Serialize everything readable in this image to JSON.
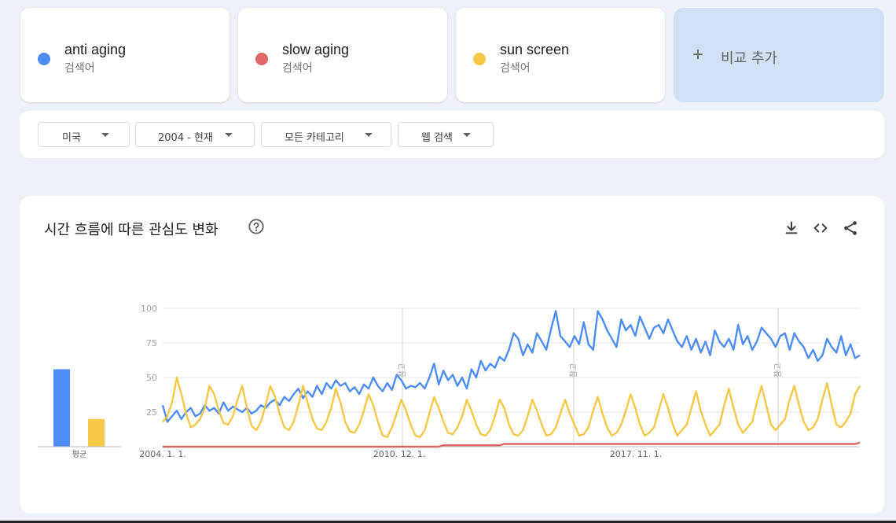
{
  "terms": [
    {
      "name": "anti aging",
      "type": "검색어",
      "color": "#4e8df5"
    },
    {
      "name": "slow aging",
      "type": "검색어",
      "color": "#e06666"
    },
    {
      "name": "sun screen",
      "type": "검색어",
      "color": "#f5c848"
    }
  ],
  "add_compare": {
    "label": "비교 추가"
  },
  "filters": {
    "region": "미국",
    "period": "2004 - 현재",
    "category": "모든 카테고리",
    "search_type": "웹 검색"
  },
  "chart_panel": {
    "title": "시간 흐름에 따른 관심도 변화",
    "icons": [
      "help-icon",
      "download-icon",
      "embed-icon",
      "share-icon"
    ]
  },
  "chart_data": {
    "type": "line",
    "ylim": [
      0,
      100
    ],
    "yticks": [
      "100",
      "75",
      "50",
      "25"
    ],
    "xticks": [
      "2004. 1. 1.",
      "2010. 12. 1.",
      "2017. 11. 1."
    ],
    "annotation_label": "참고",
    "averages": {
      "label": "평균",
      "values": [
        {
          "name": "anti aging",
          "value": 56,
          "color": "#4e8df5"
        },
        {
          "name": "sun screen",
          "value": 20,
          "color": "#f5c848"
        }
      ]
    },
    "series": [
      {
        "name": "anti aging",
        "color": "#4e8df5",
        "values": [
          30,
          18,
          22,
          26,
          20,
          25,
          28,
          22,
          24,
          30,
          26,
          28,
          24,
          32,
          26,
          29,
          27,
          25,
          28,
          24,
          26,
          30,
          28,
          32,
          34,
          30,
          36,
          33,
          38,
          42,
          35,
          40,
          36,
          44,
          38,
          46,
          42,
          48,
          44,
          46,
          40,
          43,
          38,
          45,
          42,
          50,
          44,
          40,
          46,
          41,
          52,
          48,
          42,
          44,
          43,
          46,
          42,
          50,
          60,
          45,
          55,
          48,
          52,
          44,
          50,
          42,
          56,
          50,
          62,
          55,
          60,
          57,
          65,
          62,
          70,
          82,
          78,
          66,
          74,
          68,
          82,
          76,
          70,
          85,
          98,
          80,
          76,
          72,
          80,
          74,
          90,
          74,
          70,
          98,
          92,
          84,
          78,
          72,
          92,
          84,
          88,
          80,
          94,
          86,
          78,
          86,
          88,
          82,
          92,
          84,
          76,
          72,
          80,
          70,
          78,
          68,
          76,
          66,
          84,
          76,
          72,
          78,
          70,
          88,
          74,
          80,
          70,
          76,
          86,
          82,
          78,
          72,
          80,
          82,
          70,
          82,
          76,
          72,
          64,
          70,
          62,
          66,
          78,
          72,
          68,
          80,
          66,
          74,
          64,
          66
        ]
      },
      {
        "name": "slow aging",
        "color": "#e06666",
        "values": [
          0,
          0,
          0,
          0,
          0,
          0,
          0,
          0,
          0,
          0,
          0,
          0,
          0,
          0,
          0,
          0,
          0,
          0,
          0,
          0,
          0,
          0,
          0,
          0,
          0,
          0,
          0,
          0,
          0,
          0,
          0,
          0,
          0,
          0,
          0,
          0,
          0,
          0,
          0,
          0,
          0,
          0,
          0,
          0,
          0,
          0,
          0,
          0,
          0,
          0,
          0,
          0,
          0,
          0,
          0,
          0,
          0,
          0,
          0,
          0,
          1,
          1,
          1,
          1,
          1,
          1,
          1,
          1,
          1,
          1,
          1,
          1,
          1,
          2,
          2,
          2,
          2,
          2,
          2,
          2,
          2,
          2,
          2,
          2,
          2,
          2,
          2,
          2,
          2,
          2,
          2,
          2,
          2,
          2,
          2,
          2,
          2,
          2,
          2,
          2,
          2,
          2,
          2,
          2,
          2,
          2,
          2,
          2,
          2,
          2,
          2,
          2,
          2,
          2,
          2,
          2,
          2,
          2,
          2,
          2,
          2,
          2,
          2,
          2,
          2,
          2,
          2,
          2,
          2,
          2,
          2,
          2,
          2,
          2,
          2,
          2,
          2,
          2,
          2,
          2,
          2,
          2,
          2,
          2,
          2,
          2,
          2,
          2,
          2,
          3
        ]
      },
      {
        "name": "sun screen",
        "color": "#f5c848",
        "values": [
          18,
          22,
          32,
          50,
          38,
          24,
          14,
          16,
          20,
          28,
          44,
          38,
          26,
          17,
          16,
          22,
          34,
          44,
          28,
          15,
          12,
          18,
          30,
          44,
          36,
          24,
          14,
          12,
          18,
          30,
          44,
          32,
          20,
          13,
          12,
          18,
          28,
          42,
          32,
          18,
          11,
          10,
          16,
          26,
          38,
          30,
          18,
          8,
          7,
          14,
          24,
          34,
          26,
          16,
          8,
          7,
          12,
          24,
          36,
          28,
          18,
          10,
          9,
          14,
          22,
          34,
          26,
          16,
          9,
          8,
          12,
          22,
          34,
          28,
          16,
          9,
          8,
          12,
          22,
          34,
          26,
          16,
          8,
          9,
          14,
          24,
          34,
          24,
          16,
          8,
          9,
          14,
          26,
          36,
          24,
          14,
          8,
          10,
          16,
          26,
          38,
          28,
          16,
          8,
          10,
          14,
          26,
          38,
          28,
          16,
          8,
          12,
          16,
          28,
          40,
          26,
          16,
          8,
          12,
          16,
          30,
          42,
          28,
          16,
          10,
          14,
          18,
          32,
          44,
          30,
          16,
          12,
          16,
          20,
          34,
          44,
          30,
          18,
          12,
          14,
          20,
          34,
          46,
          30,
          16,
          14,
          18,
          24,
          38,
          44
        ]
      }
    ]
  }
}
